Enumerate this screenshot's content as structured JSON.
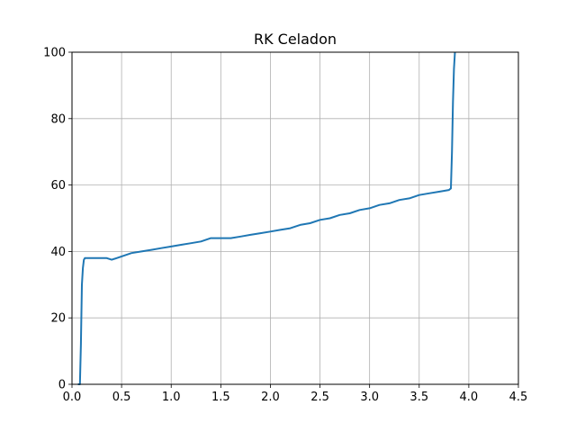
{
  "chart_data": {
    "type": "line",
    "title": "RK Celadon",
    "xlabel": "",
    "ylabel": "",
    "xlim": [
      0,
      4.5
    ],
    "ylim": [
      0,
      100
    ],
    "x_ticks": [
      "0.0",
      "0.5",
      "1.0",
      "1.5",
      "2.0",
      "2.5",
      "3.0",
      "3.5",
      "4.0",
      "4.5"
    ],
    "y_ticks": [
      "0",
      "20",
      "40",
      "60",
      "80",
      "100"
    ],
    "grid": true,
    "legend": "none",
    "series": [
      {
        "color": "#1f77b4",
        "x": [
          0.06,
          0.07,
          0.08,
          0.09,
          0.1,
          0.11,
          0.12,
          0.13,
          0.15,
          0.2,
          0.25,
          0.3,
          0.35,
          0.4,
          0.45,
          0.5,
          0.55,
          0.6,
          0.7,
          0.8,
          0.9,
          1.0,
          1.1,
          1.2,
          1.3,
          1.4,
          1.5,
          1.6,
          1.7,
          1.8,
          1.9,
          2.0,
          2.1,
          2.2,
          2.3,
          2.4,
          2.5,
          2.6,
          2.7,
          2.8,
          2.9,
          3.0,
          3.1,
          3.2,
          3.3,
          3.4,
          3.5,
          3.6,
          3.7,
          3.8,
          3.82,
          3.83,
          3.84,
          3.85,
          3.86
        ],
        "y": [
          0,
          0,
          0,
          12,
          30,
          35,
          37.5,
          38,
          38,
          38,
          38,
          38,
          38,
          37.5,
          38,
          38.5,
          39,
          39.5,
          40,
          40.5,
          41,
          41.5,
          42,
          42.5,
          43,
          44,
          44,
          44,
          44.5,
          45,
          45.5,
          46,
          46.5,
          47,
          48,
          48.5,
          49.5,
          50,
          51,
          51.5,
          52.5,
          53,
          54,
          54.5,
          55.5,
          56,
          57,
          57.5,
          58,
          58.5,
          59,
          70,
          85,
          95,
          100
        ]
      }
    ]
  }
}
